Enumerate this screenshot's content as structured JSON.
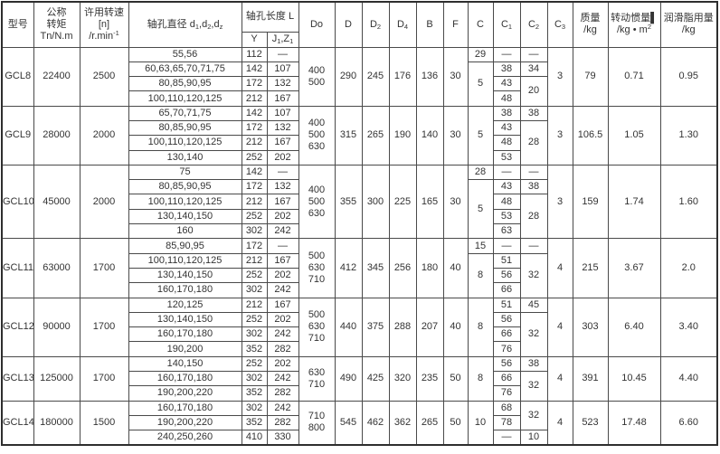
{
  "header": {
    "model": "型号",
    "torque": "公称<br>转矩<br>Tn/N.m",
    "speed": "许用转速<br>[n]<br>/r.min<sup>-1</sup>",
    "bore": "轴孔直径 d<sub>1</sub>,d<sub>2</sub>,d<sub>z</sub>",
    "length": "轴孔长度 L",
    "y": "Y",
    "jz": "J<sub>1</sub>,Z<sub>1</sub>",
    "outer_diameter": "Do",
    "d": "D",
    "d2": "D<sub>2</sub>",
    "d4": "D<sub>4</sub>",
    "b": "B",
    "f": "F",
    "c": "C",
    "c1": "C<sub>1</sub>",
    "c2": "C<sub>2</sub>",
    "c3": "C<sub>3</sub>",
    "mass": "质量<br>/kg",
    "inertia": "转动惯量▌<br>/kg • m<sup>2</sup>",
    "grease": "润滑脂用量<br>/kg"
  },
  "colors": {
    "border": "#4a4a4a",
    "outer_border": "#2e2e2e",
    "text": "#333333",
    "background": "#ffffff"
  },
  "groups": [
    {
      "model": "GCL8",
      "torque": "22400",
      "speed": "2500",
      "rows": [
        [
          "55,56",
          "112",
          "—"
        ],
        [
          "60,63,65,70,71,75",
          "142",
          "107"
        ],
        [
          "80,85,90,95",
          "172",
          "132"
        ],
        [
          "100,110,120,125",
          "212",
          "167"
        ]
      ],
      "do": [
        "400",
        "500"
      ],
      "d": "290",
      "d2": "245",
      "d4": "176",
      "b": "136",
      "f": "30",
      "c": [
        [
          "29",
          1
        ],
        [
          "5",
          3
        ]
      ],
      "c1": [
        [
          "—",
          1
        ],
        [
          "38",
          1
        ],
        [
          "43",
          1
        ],
        [
          "48",
          1
        ]
      ],
      "c2": [
        [
          "—",
          1
        ],
        [
          "34",
          1
        ],
        [
          "20",
          2
        ]
      ],
      "c3": "3",
      "mass": "79",
      "inertia": "0.71",
      "grease": "0.95"
    },
    {
      "model": "GCL9",
      "torque": "28000",
      "speed": "2000",
      "rows": [
        [
          "65,70,71,75",
          "142",
          "107"
        ],
        [
          "80,85,90,95",
          "172",
          "132"
        ],
        [
          "100,110,120,125",
          "212",
          "167"
        ],
        [
          "130,140",
          "252",
          "202"
        ]
      ],
      "do": [
        "400",
        "500",
        "630"
      ],
      "d": "315",
      "d2": "265",
      "d4": "190",
      "b": "140",
      "f": "30",
      "c": [
        [
          "5",
          4
        ]
      ],
      "c1": [
        [
          "38",
          1
        ],
        [
          "43",
          1
        ],
        [
          "48",
          1
        ],
        [
          "53",
          1
        ]
      ],
      "c2": [
        [
          "38",
          1
        ],
        [
          "28",
          3
        ]
      ],
      "c3": "3",
      "mass": "106.5",
      "inertia": "1.05",
      "grease": "1.30"
    },
    {
      "model": "GCL10",
      "torque": "45000",
      "speed": "2000",
      "rows": [
        [
          "75",
          "142",
          "—"
        ],
        [
          "80,85,90,95",
          "172",
          "132"
        ],
        [
          "100,110,120,125",
          "212",
          "167"
        ],
        [
          "130,140,150",
          "252",
          "202"
        ],
        [
          "160",
          "302",
          "242"
        ]
      ],
      "do": [
        "400",
        "500",
        "630"
      ],
      "d": "355",
      "d2": "300",
      "d4": "225",
      "b": "165",
      "f": "30",
      "c": [
        [
          "28",
          1
        ],
        [
          "5",
          4
        ]
      ],
      "c1": [
        [
          "—",
          1
        ],
        [
          "43",
          1
        ],
        [
          "48",
          1
        ],
        [
          "53",
          1
        ],
        [
          "63",
          1
        ]
      ],
      "c2": [
        [
          "—",
          1
        ],
        [
          "38",
          1
        ],
        [
          "28",
          3
        ]
      ],
      "c3": "3",
      "mass": "159",
      "inertia": "1.74",
      "grease": "1.60"
    },
    {
      "model": "GCL11",
      "torque": "63000",
      "speed": "1700",
      "rows": [
        [
          "85,90,95",
          "172",
          "—"
        ],
        [
          "100,110,120,125",
          "212",
          "167"
        ],
        [
          "130,140,150",
          "252",
          "202"
        ],
        [
          "160,170,180",
          "302",
          "242"
        ]
      ],
      "do": [
        "500",
        "630",
        "710"
      ],
      "d": "412",
      "d2": "345",
      "d4": "256",
      "b": "180",
      "f": "40",
      "c": [
        [
          "15",
          1
        ],
        [
          "8",
          3
        ]
      ],
      "c1": [
        [
          "—",
          1
        ],
        [
          "51",
          1
        ],
        [
          "56",
          1
        ],
        [
          "66",
          1
        ]
      ],
      "c2": [
        [
          "—",
          1
        ],
        [
          "32",
          3
        ]
      ],
      "c3": "4",
      "mass": "215",
      "inertia": "3.67",
      "grease": "2.0"
    },
    {
      "model": "GCL12",
      "torque": "90000",
      "speed": "1700",
      "rows": [
        [
          "120,125",
          "212",
          "167"
        ],
        [
          "130,140,150",
          "252",
          "202"
        ],
        [
          "160,170,180",
          "302",
          "242"
        ],
        [
          "190,200",
          "352",
          "282"
        ]
      ],
      "do": [
        "500",
        "630",
        "710"
      ],
      "d": "440",
      "d2": "375",
      "d4": "288",
      "b": "207",
      "f": "40",
      "c": [
        [
          "8",
          4
        ]
      ],
      "c1": [
        [
          "51",
          1
        ],
        [
          "56",
          1
        ],
        [
          "66",
          1
        ],
        [
          "76",
          1
        ]
      ],
      "c2": [
        [
          "45",
          1
        ],
        [
          "32",
          3
        ]
      ],
      "c3": "4",
      "mass": "303",
      "inertia": "6.40",
      "grease": "3.40"
    },
    {
      "model": "GCL13",
      "torque": "125000",
      "speed": "1700",
      "rows": [
        [
          "140,150",
          "252",
          "202"
        ],
        [
          "160,170,180",
          "302",
          "242"
        ],
        [
          "190,200,220",
          "352",
          "282"
        ]
      ],
      "do": [
        "630",
        "710"
      ],
      "d": "490",
      "d2": "425",
      "d4": "320",
      "b": "235",
      "f": "50",
      "c": [
        [
          "8",
          3
        ]
      ],
      "c1": [
        [
          "56",
          1
        ],
        [
          "66",
          1
        ],
        [
          "76",
          1
        ]
      ],
      "c2": [
        [
          "38",
          1
        ],
        [
          "32",
          2
        ]
      ],
      "c3": "4",
      "mass": "391",
      "inertia": "10.45",
      "grease": "4.40"
    },
    {
      "model": "GCL14",
      "torque": "180000",
      "speed": "1500",
      "rows": [
        [
          "160,170,180",
          "302",
          "242"
        ],
        [
          "190,200,220",
          "352",
          "282"
        ],
        [
          "240,250,260",
          "410",
          "330"
        ]
      ],
      "do": [
        "710",
        "800"
      ],
      "d": "545",
      "d2": "462",
      "d4": "362",
      "b": "265",
      "f": "50",
      "c": [
        [
          "10",
          3
        ]
      ],
      "c1": [
        [
          "68",
          1
        ],
        [
          "78",
          1
        ],
        [
          "—",
          1
        ]
      ],
      "c2": [
        [
          "32",
          2
        ],
        [
          "10",
          1
        ]
      ],
      "c3": "4",
      "mass": "523",
      "inertia": "17.48",
      "grease": "6.60"
    }
  ]
}
